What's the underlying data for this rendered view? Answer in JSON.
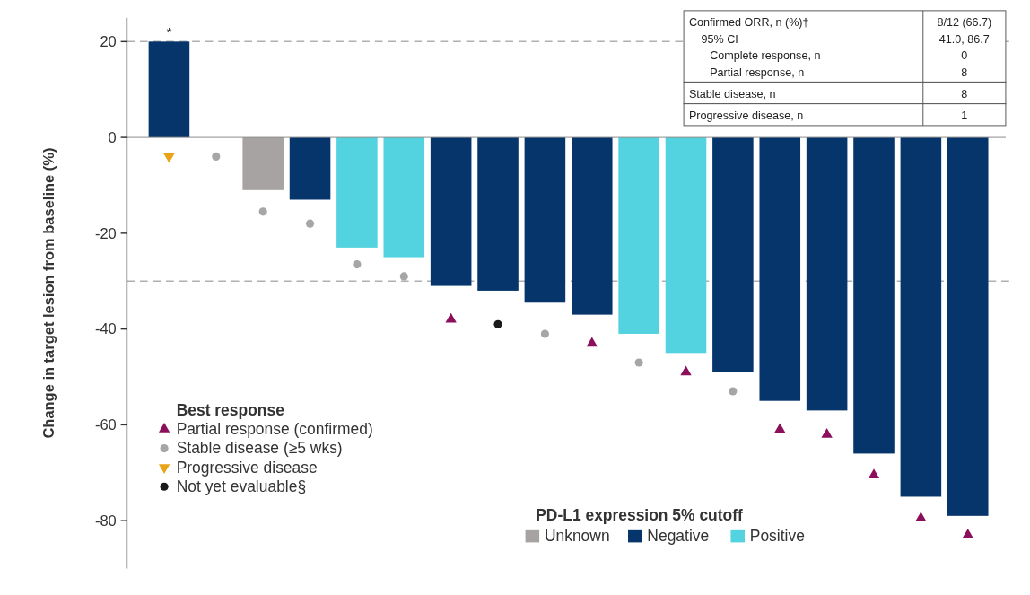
{
  "chart_data": [
    {
      "type": "bar",
      "ylabel": "Change in target lesion from baseline (%)",
      "legend_title": "Best response",
      "categories": [
        null,
        null,
        null,
        null,
        null,
        null,
        null,
        null,
        null,
        null,
        null,
        null,
        null,
        null,
        null,
        null,
        null,
        null
      ],
      "series": [
        {
          "name": "Unknown",
          "color": "#a8a3a3",
          "values": [
            null,
            null,
            -11,
            null,
            null,
            null,
            null,
            null,
            null,
            null,
            null,
            null,
            null,
            null,
            null,
            null,
            null,
            null
          ]
        },
        {
          "name": "Negative",
          "color": "#06356b",
          "values": [
            20,
            0,
            null,
            -13,
            null,
            null,
            -31,
            -32,
            -34.5,
            -37,
            null,
            null,
            -49,
            -55,
            -57,
            -66,
            -75,
            -79
          ]
        },
        {
          "name": "Positive",
          "color": "#52d3df",
          "values": [
            null,
            null,
            null,
            null,
            -23,
            -25,
            null,
            null,
            null,
            null,
            -41,
            -45,
            null,
            null,
            null,
            null,
            null,
            null
          ]
        },
        {
          "name": "Partial response (confirmed)",
          "type": "scatter",
          "marker": "triangle",
          "color": "#8b0f5a",
          "values": [
            null,
            null,
            null,
            null,
            null,
            null,
            -38,
            null,
            null,
            -43,
            null,
            -49,
            null,
            -61,
            -62,
            -70.5,
            -79.5,
            -83
          ]
        },
        {
          "name": "Stable disease (≥5 wks)",
          "type": "scatter",
          "marker": "circle",
          "color": "#a6a6a6",
          "values": [
            null,
            -4,
            -15.5,
            -18,
            -26.5,
            -29,
            null,
            null,
            -41,
            null,
            -47,
            null,
            -53,
            null,
            null,
            null,
            null,
            null
          ]
        },
        {
          "name": "Progressive disease",
          "type": "scatter",
          "marker": "triangle-down",
          "color": "#e8a317",
          "values": [
            -4,
            null,
            null,
            null,
            null,
            null,
            null,
            null,
            null,
            null,
            null,
            null,
            null,
            null,
            null,
            null,
            null,
            null
          ]
        },
        {
          "name": "Not yet evaluable§",
          "type": "scatter",
          "marker": "circle",
          "color": "#1a1a1a",
          "values": [
            null,
            null,
            null,
            null,
            null,
            null,
            null,
            -39,
            null,
            null,
            null,
            null,
            null,
            null,
            null,
            null,
            null,
            null
          ]
        }
      ],
      "ylim": [
        -90,
        25
      ],
      "yticks": [
        -80,
        -60,
        -40,
        -20,
        0,
        20
      ],
      "ref_lines": [
        {
          "axis": "y",
          "value": 20,
          "color": "#b0b0b0",
          "line_style": "dashed"
        },
        {
          "axis": "y",
          "value": -30,
          "color": "#b0b0b0",
          "line_style": "dashed"
        }
      ],
      "annotations": [
        {
          "text": "*",
          "y": 20
        },
        "PD-L1 expression 5% cutoff"
      ],
      "legend": "bottom"
    },
    {
      "type": "other",
      "annotations": [
        "Confirmed ORR, n (%)†",
        "8/12 (66.7)",
        "95% CI",
        "41.0, 86.7",
        "Complete response, n",
        "0",
        "Partial response, n",
        "8",
        "Stable disease, n",
        "8",
        "Progressive disease, n",
        "1"
      ]
    }
  ]
}
